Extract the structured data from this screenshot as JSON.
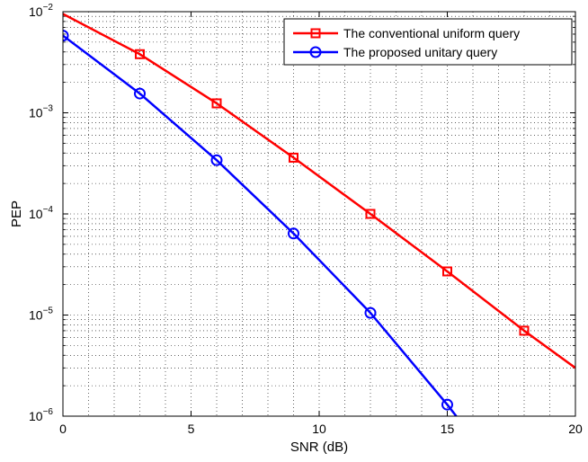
{
  "chart_data": {
    "type": "line",
    "xlabel": "SNR (dB)",
    "ylabel": "PEP",
    "xlim": [
      0,
      20
    ],
    "ylim": [
      1e-06,
      0.01
    ],
    "yscale": "log",
    "grid": true,
    "grid_style": "dotted",
    "legend_position": "top-right",
    "x_ticks": [
      0,
      5,
      10,
      15,
      20
    ],
    "x_tick_labels": [
      "0",
      "5",
      "10",
      "15",
      "20"
    ],
    "y_ticks": [
      1e-06,
      1e-05,
      0.0001,
      0.001,
      0.01
    ],
    "y_tick_labels": [
      {
        "base": "10",
        "exp": "−6"
      },
      {
        "base": "10",
        "exp": "−5"
      },
      {
        "base": "10",
        "exp": "−4"
      },
      {
        "base": "10",
        "exp": "−3"
      },
      {
        "base": "10",
        "exp": "−2"
      }
    ],
    "series": [
      {
        "name": "The conventional uniform query",
        "color": "#ff0000",
        "marker": "square",
        "marker_x": [
          3,
          6,
          9,
          12,
          15,
          18
        ],
        "x": [
          0,
          3,
          6,
          9,
          12,
          15,
          18,
          20
        ],
        "y": [
          0.0095,
          0.0038,
          0.00124,
          0.00036,
          0.0001,
          2.7e-05,
          7e-06,
          3e-06
        ]
      },
      {
        "name": "The proposed unitary query",
        "color": "#0000ff",
        "marker": "circle",
        "marker_x": [
          0,
          3,
          6,
          9,
          12,
          15
        ],
        "x": [
          0,
          3,
          6,
          9,
          12,
          15,
          15.35
        ],
        "y": [
          0.0058,
          0.00155,
          0.00034,
          6.4e-05,
          1.05e-05,
          1.3e-06,
          1e-06
        ]
      }
    ]
  }
}
